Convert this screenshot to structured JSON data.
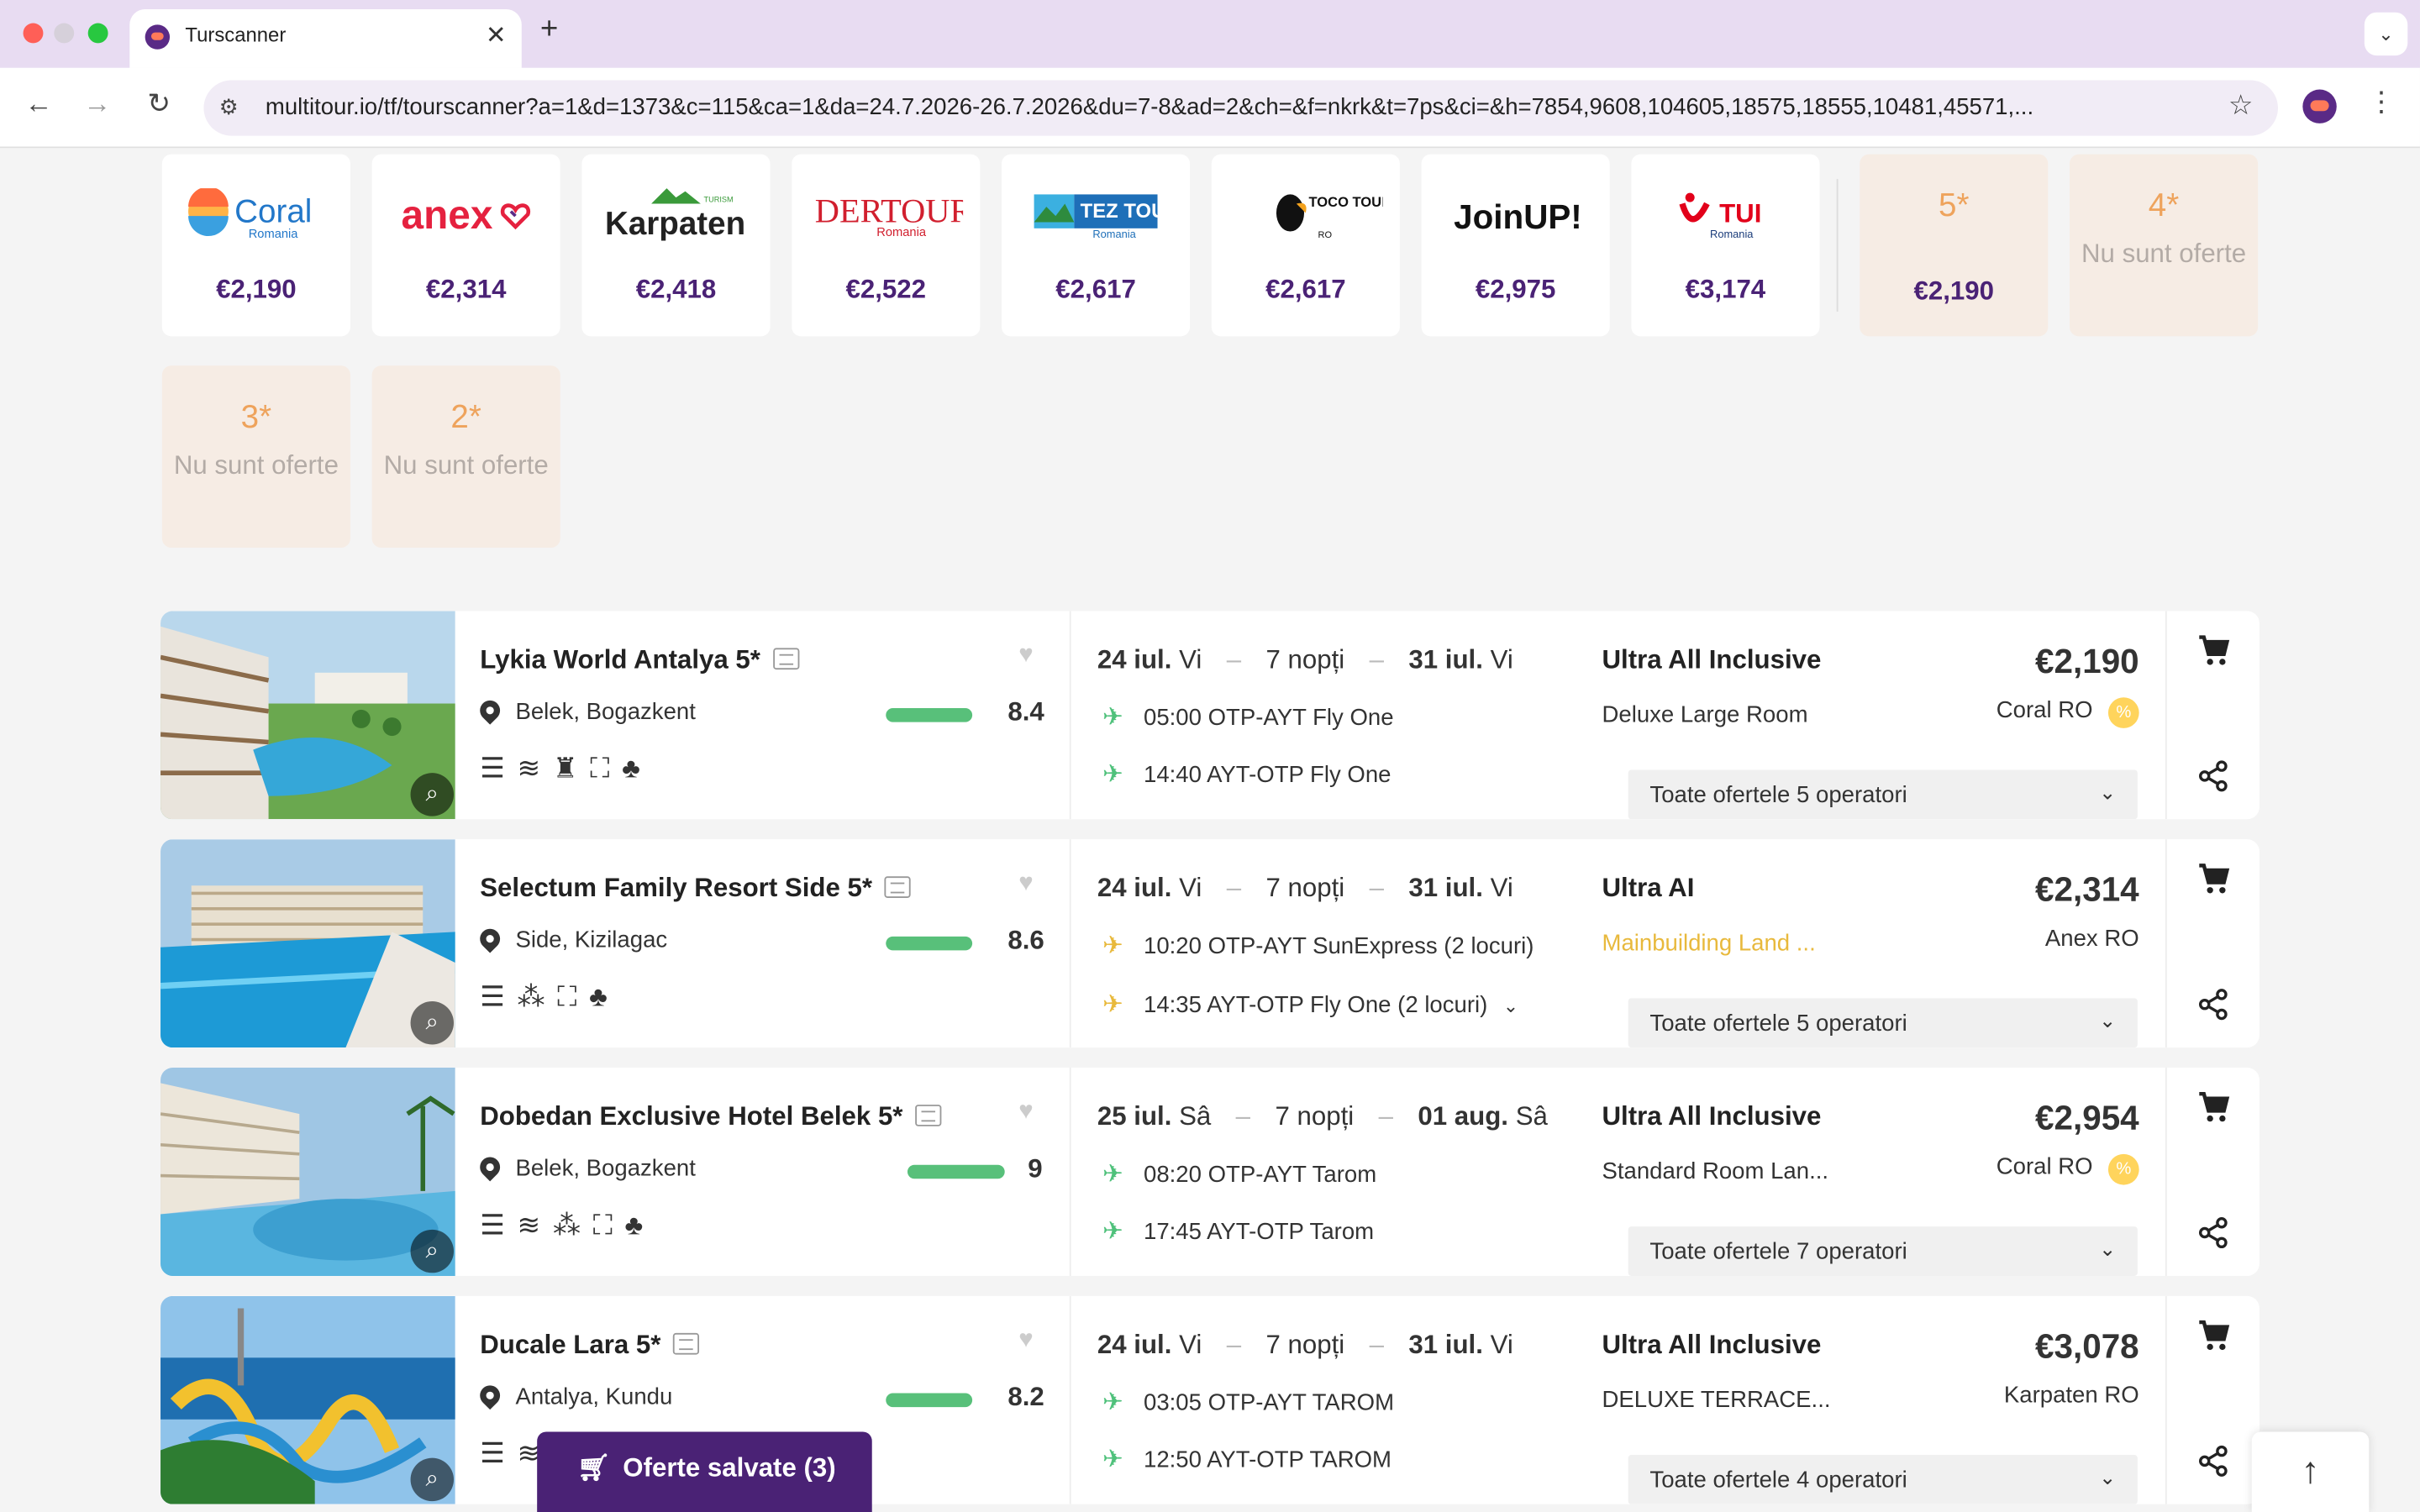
{
  "browser": {
    "tab_title": "Turscanner",
    "url": "multitour.io/tf/tourscanner?a=1&d=1373&c=115&ca=1&da=24.7.2026-26.7.2026&du=7-8&ad=2&ch=&f=nkrk&t=7ps&ci=&h=7854,9608,104605,18575,18555,10481,45571,..."
  },
  "operators": [
    {
      "name": "Coral",
      "sub": "Romania",
      "price": "€2,190"
    },
    {
      "name": "anex",
      "price": "€2,314"
    },
    {
      "name": "Karpaten",
      "sub": "TURISM",
      "price": "€2,418"
    },
    {
      "name": "DERTOUR",
      "sub": "Romania",
      "price": "€2,522"
    },
    {
      "name": "TEZ TOUR",
      "sub": "Romania",
      "price": "€2,617"
    },
    {
      "name": "TOCO TOUR",
      "sub": "RO",
      "price": "€2,617"
    },
    {
      "name": "JoinUP!",
      "price": "€2,975"
    },
    {
      "name": "TUI",
      "sub": "Romania",
      "price": "€3,174"
    }
  ],
  "stars": [
    {
      "label": "5*",
      "price": "€2,190"
    },
    {
      "label": "4*",
      "none": "Nu sunt oferte"
    },
    {
      "label": "3*",
      "none": "Nu sunt oferte"
    },
    {
      "label": "2*",
      "none": "Nu sunt oferte"
    }
  ],
  "hotels": [
    {
      "name": "Lykia World Antalya 5*",
      "location": "Belek, Bogazkent",
      "score": "8.4",
      "score_frac": 0.84,
      "date_from": "24 iul.",
      "day_from": "Vi",
      "nights": "7 nopți",
      "date_to": "31 iul.",
      "day_to": "Vi",
      "flight_out": "05:00 OTP-AYT Fly One",
      "flight_back": "14:40 AYT-OTP Fly One",
      "board": "Ultra All Inclusive",
      "room": "Deluxe Large Room",
      "price": "€2,190",
      "operator": "Coral RO",
      "offers": "Toate ofertele 5 operatori"
    },
    {
      "name": "Selectum Family Resort Side 5*",
      "location": "Side, Kizilagac",
      "score": "8.6",
      "score_frac": 0.86,
      "date_from": "24 iul.",
      "day_from": "Vi",
      "nights": "7 nopți",
      "date_to": "31 iul.",
      "day_to": "Vi",
      "flight_out": "10:20 OTP-AYT SunExpress (2 locuri)",
      "flight_back": "14:35 AYT-OTP Fly One (2 locuri)",
      "board": "Ultra AI",
      "room": "Mainbuilding Land ...",
      "price": "€2,314",
      "operator": "Anex RO",
      "offers": "Toate ofertele 5 operatori"
    },
    {
      "name": "Dobedan Exclusive Hotel Belek 5*",
      "location": "Belek, Bogazkent",
      "score": "9",
      "score_frac": 0.9,
      "date_from": "25 iul.",
      "day_from": "Sâ",
      "nights": "7 nopți",
      "date_to": "01 aug.",
      "day_to": "Sâ",
      "flight_out": "08:20 OTP-AYT Tarom",
      "flight_back": "17:45 AYT-OTP Tarom",
      "board": "Ultra All Inclusive",
      "room": "Standard Room Lan...",
      "price": "€2,954",
      "operator": "Coral RO",
      "offers": "Toate ofertele 7 operatori"
    },
    {
      "name": "Ducale Lara 5*",
      "location": "Antalya, Kundu",
      "score": "8.2",
      "score_frac": 0.82,
      "date_from": "24 iul.",
      "day_from": "Vi",
      "nights": "7 nopți",
      "date_to": "31 iul.",
      "day_to": "Vi",
      "flight_out": "03:05 OTP-AYT TAROM",
      "flight_back": "12:50 AYT-OTP TAROM",
      "board": "Ultra All Inclusive",
      "room": "DELUXE TERRACE...",
      "price": "€3,078",
      "operator": "Karpaten RO",
      "offers": "Toate ofertele 4 operatori"
    }
  ],
  "saved_button": "Oferte salvate (3)",
  "colors": {
    "accent": "#4a2275",
    "score_bar": "#58c07a",
    "star_label": "#eea35c",
    "warning_room": "#e8b93c",
    "plane": "#4fc17b",
    "plane_alt": "#e8b93c"
  }
}
